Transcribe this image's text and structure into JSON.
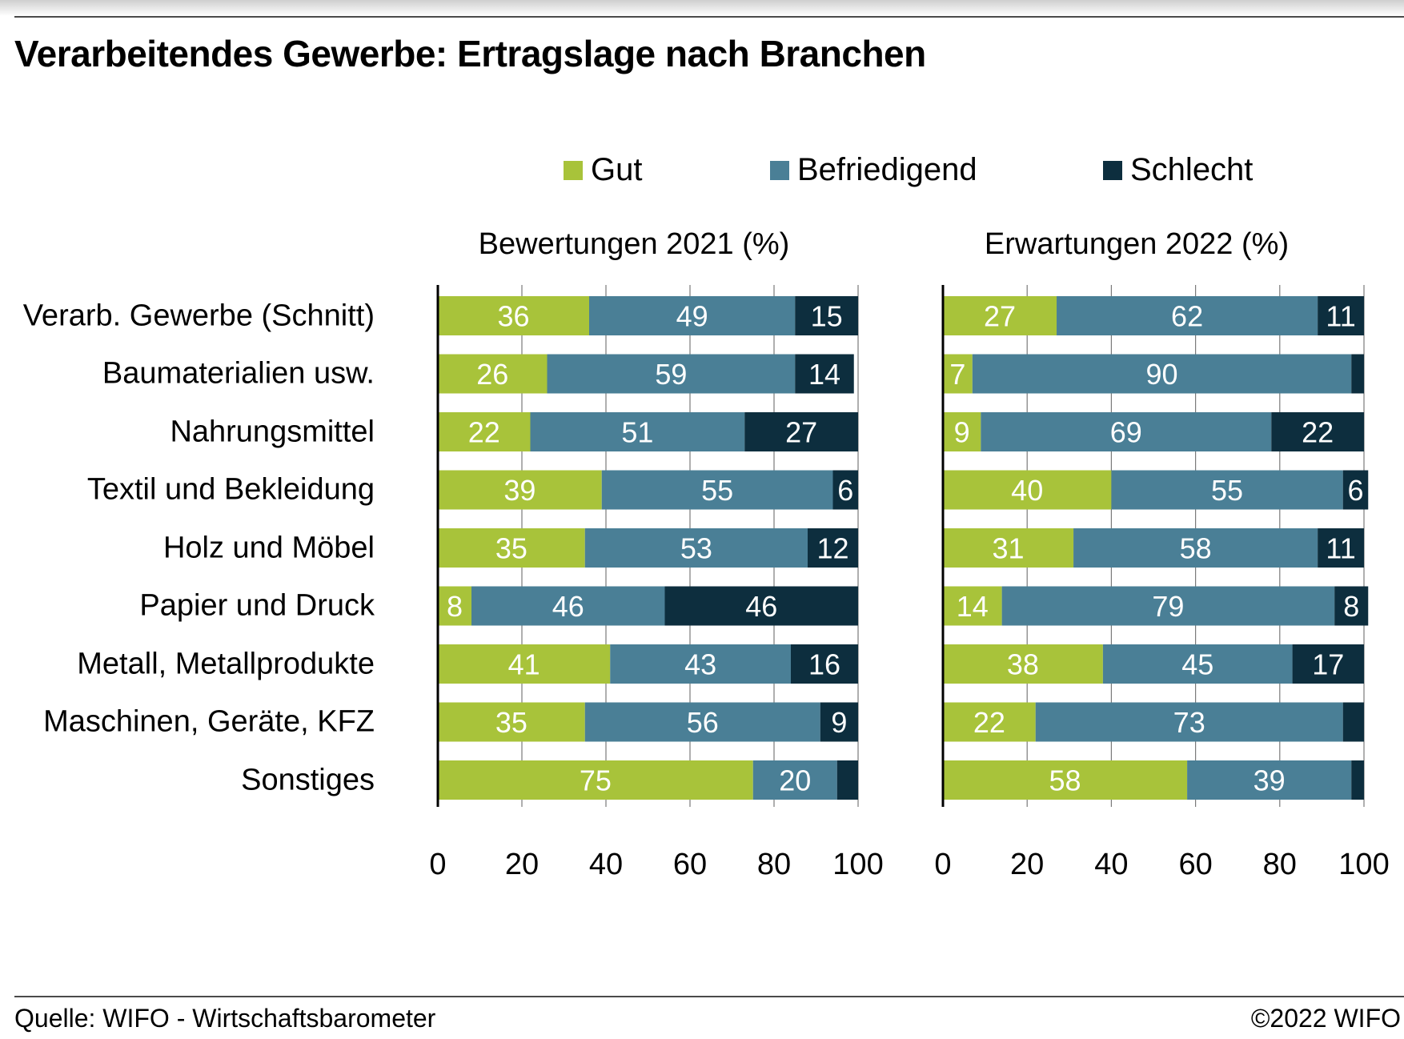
{
  "title": "Verarbeitendes Gewerbe: Ertragslage nach Branchen",
  "source": "Quelle: WIFO - Wirtschaftsbarometer",
  "copyright": "©2022 WIFO",
  "colors": {
    "gut": "#a8c33a",
    "befriedigend": "#4a7f96",
    "schlecht": "#0d2e3e"
  },
  "legend": [
    {
      "label": "Gut",
      "color": "#a8c33a"
    },
    {
      "label": "Befriedigend",
      "color": "#4a7f96"
    },
    {
      "label": "Schlecht",
      "color": "#0d2e3e"
    }
  ],
  "chart_data": [
    {
      "type": "bar",
      "orientation": "horizontal",
      "stacked": true,
      "title": "Bewertungen 2021 (%)",
      "categories": [
        "Verarb. Gewerbe (Schnitt)",
        "Baumaterialien usw.",
        "Nahrungsmittel",
        "Textil und Bekleidung",
        "Holz und Möbel",
        "Papier und Druck",
        "Metall, Metallprodukte",
        "Maschinen, Geräte, KFZ",
        "Sonstiges"
      ],
      "series": [
        {
          "name": "Gut",
          "values": [
            36,
            26,
            22,
            39,
            35,
            8,
            41,
            35,
            75
          ]
        },
        {
          "name": "Befriedigend",
          "values": [
            49,
            59,
            51,
            55,
            53,
            46,
            43,
            56,
            20
          ]
        },
        {
          "name": "Schlecht",
          "values": [
            15,
            14,
            27,
            6,
            12,
            46,
            16,
            9,
            5
          ]
        }
      ],
      "labels_shown": [
        [
          "36",
          "49",
          "15"
        ],
        [
          "26",
          "59",
          "14"
        ],
        [
          "22",
          "51",
          "27"
        ],
        [
          "39",
          "55",
          "6"
        ],
        [
          "35",
          "53",
          "12"
        ],
        [
          "8",
          "46",
          "46"
        ],
        [
          "41",
          "43",
          "16"
        ],
        [
          "35",
          "56",
          "9"
        ],
        [
          "75",
          "20",
          ""
        ]
      ],
      "xlim": [
        0,
        100
      ],
      "xticks": [
        "0",
        "20",
        "40",
        "60",
        "80",
        "100"
      ],
      "grid": true
    },
    {
      "type": "bar",
      "orientation": "horizontal",
      "stacked": true,
      "title": "Erwartungen 2022 (%)",
      "categories": [
        "Verarb. Gewerbe (Schnitt)",
        "Baumaterialien usw.",
        "Nahrungsmittel",
        "Textil und Bekleidung",
        "Holz und Möbel",
        "Papier und Druck",
        "Metall, Metallprodukte",
        "Maschinen, Geräte, KFZ",
        "Sonstiges"
      ],
      "series": [
        {
          "name": "Gut",
          "values": [
            27,
            7,
            9,
            40,
            31,
            14,
            38,
            22,
            58
          ]
        },
        {
          "name": "Befriedigend",
          "values": [
            62,
            90,
            69,
            55,
            58,
            79,
            45,
            73,
            39
          ]
        },
        {
          "name": "Schlecht",
          "values": [
            11,
            3,
            22,
            6,
            11,
            8,
            17,
            5,
            3
          ]
        }
      ],
      "labels_shown": [
        [
          "27",
          "62",
          "11"
        ],
        [
          "7",
          "90",
          ""
        ],
        [
          "9",
          "69",
          "22"
        ],
        [
          "40",
          "55",
          "6"
        ],
        [
          "31",
          "58",
          "11"
        ],
        [
          "14",
          "79",
          "8"
        ],
        [
          "38",
          "45",
          "17"
        ],
        [
          "22",
          "73",
          ""
        ],
        [
          "58",
          "39",
          ""
        ]
      ],
      "xlim": [
        0,
        100
      ],
      "xticks": [
        "0",
        "20",
        "40",
        "60",
        "80",
        "100"
      ],
      "grid": true
    }
  ]
}
